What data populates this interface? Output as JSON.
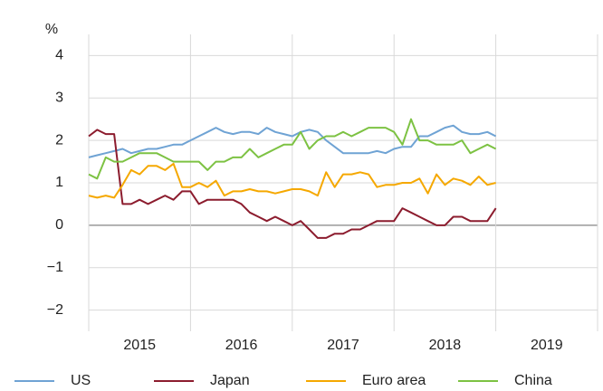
{
  "chart_data": {
    "type": "line",
    "y_unit": "%",
    "x": [
      2015,
      2015.083,
      2015.167,
      2015.25,
      2015.333,
      2015.417,
      2015.5,
      2015.583,
      2015.667,
      2015.75,
      2015.833,
      2015.917,
      2016,
      2016.083,
      2016.167,
      2016.25,
      2016.333,
      2016.417,
      2016.5,
      2016.583,
      2016.667,
      2016.75,
      2016.833,
      2016.917,
      2017,
      2017.083,
      2017.167,
      2017.25,
      2017.333,
      2017.417,
      2017.5,
      2017.583,
      2017.667,
      2017.75,
      2017.833,
      2017.917,
      2018,
      2018.083,
      2018.167,
      2018.25,
      2018.333,
      2018.417,
      2018.5,
      2018.583,
      2018.667,
      2018.75,
      2018.833,
      2018.917,
      2019
    ],
    "series": [
      {
        "name": "US",
        "color": "#6fa3d4",
        "values": [
          1.6,
          1.65,
          1.7,
          1.75,
          1.8,
          1.7,
          1.75,
          1.8,
          1.8,
          1.85,
          1.9,
          1.9,
          2.0,
          2.1,
          2.2,
          2.3,
          2.2,
          2.15,
          2.2,
          2.2,
          2.15,
          2.3,
          2.2,
          2.15,
          2.1,
          2.2,
          2.25,
          2.2,
          2.0,
          1.85,
          1.7,
          1.7,
          1.7,
          1.7,
          1.75,
          1.7,
          1.8,
          1.85,
          1.85,
          2.1,
          2.1,
          2.2,
          2.3,
          2.35,
          2.2,
          2.15,
          2.15,
          2.2,
          2.1
        ]
      },
      {
        "name": "Japan",
        "color": "#8c1c2e",
        "values": [
          2.1,
          2.25,
          2.15,
          2.15,
          0.5,
          0.5,
          0.6,
          0.5,
          0.6,
          0.7,
          0.6,
          0.8,
          0.8,
          0.5,
          0.6,
          0.6,
          0.6,
          0.6,
          0.5,
          0.3,
          0.2,
          0.1,
          0.2,
          0.1,
          0.0,
          0.1,
          -0.1,
          -0.3,
          -0.3,
          -0.2,
          -0.2,
          -0.1,
          -0.1,
          0.0,
          0.1,
          0.1,
          0.1,
          0.4,
          0.3,
          0.2,
          0.1,
          0.0,
          0.0,
          0.2,
          0.2,
          0.1,
          0.1,
          0.1,
          0.4
        ]
      },
      {
        "name": "Euro area",
        "color": "#f5a800",
        "values": [
          0.7,
          0.65,
          0.7,
          0.65,
          0.95,
          1.3,
          1.2,
          1.4,
          1.4,
          1.3,
          1.45,
          0.9,
          0.9,
          1.0,
          0.9,
          1.05,
          0.7,
          0.8,
          0.8,
          0.85,
          0.8,
          0.8,
          0.75,
          0.8,
          0.85,
          0.85,
          0.8,
          0.7,
          1.25,
          0.9,
          1.2,
          1.2,
          1.25,
          1.2,
          0.9,
          0.95,
          0.95,
          1.0,
          1.0,
          1.1,
          0.75,
          1.2,
          0.95,
          1.1,
          1.05,
          0.95,
          1.15,
          0.95,
          1.0
        ]
      },
      {
        "name": "China",
        "color": "#7dc243",
        "values": [
          1.2,
          1.1,
          1.6,
          1.5,
          1.5,
          1.6,
          1.7,
          1.7,
          1.7,
          1.6,
          1.5,
          1.5,
          1.5,
          1.5,
          1.3,
          1.5,
          1.5,
          1.6,
          1.6,
          1.8,
          1.6,
          1.7,
          1.8,
          1.9,
          1.9,
          2.2,
          1.8,
          2.0,
          2.1,
          2.1,
          2.2,
          2.1,
          2.2,
          2.3,
          2.3,
          2.3,
          2.2,
          1.9,
          2.5,
          2.0,
          2.0,
          1.9,
          1.9,
          1.9,
          2.0,
          1.7,
          1.8,
          1.9,
          1.8
        ]
      }
    ],
    "xlim": [
      2015,
      2020
    ],
    "xgrid": [
      2015,
      2016,
      2017,
      2018,
      2019,
      2020
    ],
    "xticks": [
      {
        "value": 2015.5,
        "label": "2015"
      },
      {
        "value": 2016.5,
        "label": "2016"
      },
      {
        "value": 2017.5,
        "label": "2017"
      },
      {
        "value": 2018.5,
        "label": "2018"
      },
      {
        "value": 2019.5,
        "label": "2019"
      }
    ],
    "ylim": [
      -2.5,
      4.5
    ],
    "yticks": [
      {
        "value": -2,
        "label": "−2"
      },
      {
        "value": -1,
        "label": "−1"
      },
      0,
      1,
      2,
      3,
      4
    ],
    "grid": true,
    "legend": "bottom"
  }
}
